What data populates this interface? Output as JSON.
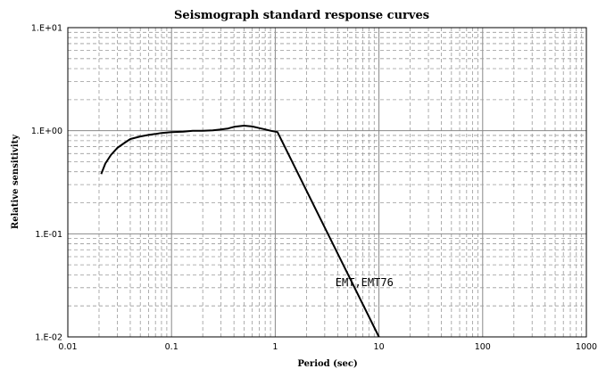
{
  "chart_data": {
    "type": "line",
    "title": "Seismograph standard response curves",
    "xlabel": "Period (sec)",
    "ylabel": "Relative sensitivity",
    "xscale": "log",
    "yscale": "log",
    "xlim": [
      0.01,
      1000
    ],
    "ylim": [
      0.01,
      10
    ],
    "x_tick_labels": [
      "0.01",
      "0.1",
      "1",
      "10",
      "100",
      "1000"
    ],
    "y_tick_labels": [
      "1.E+01",
      "1.E+00",
      "1.E-01",
      "1.E-02"
    ],
    "grid": true,
    "series": [
      {
        "label": "EMT,EMT76",
        "points": [
          [
            0.021,
            0.38
          ],
          [
            0.023,
            0.48
          ],
          [
            0.026,
            0.58
          ],
          [
            0.03,
            0.68
          ],
          [
            0.035,
            0.76
          ],
          [
            0.04,
            0.83
          ],
          [
            0.05,
            0.88
          ],
          [
            0.06,
            0.91
          ],
          [
            0.07,
            0.93
          ],
          [
            0.08,
            0.95
          ],
          [
            0.1,
            0.97
          ],
          [
            0.13,
            0.98
          ],
          [
            0.16,
            1.0
          ],
          [
            0.2,
            1.0
          ],
          [
            0.25,
            1.01
          ],
          [
            0.3,
            1.03
          ],
          [
            0.35,
            1.05
          ],
          [
            0.4,
            1.09
          ],
          [
            0.5,
            1.12
          ],
          [
            0.6,
            1.1
          ],
          [
            0.7,
            1.06
          ],
          [
            0.8,
            1.03
          ],
          [
            0.9,
            1.0
          ],
          [
            1.05,
            0.97
          ],
          [
            10,
            0.01
          ]
        ]
      }
    ],
    "annotations": [
      {
        "text": "EMT,EMT76",
        "x": 3.8,
        "y": 0.031
      }
    ],
    "colors": {
      "line": "#000000",
      "grid_major": "#888888",
      "grid_minor": "#9a9a9a",
      "axis": "#000000"
    }
  }
}
